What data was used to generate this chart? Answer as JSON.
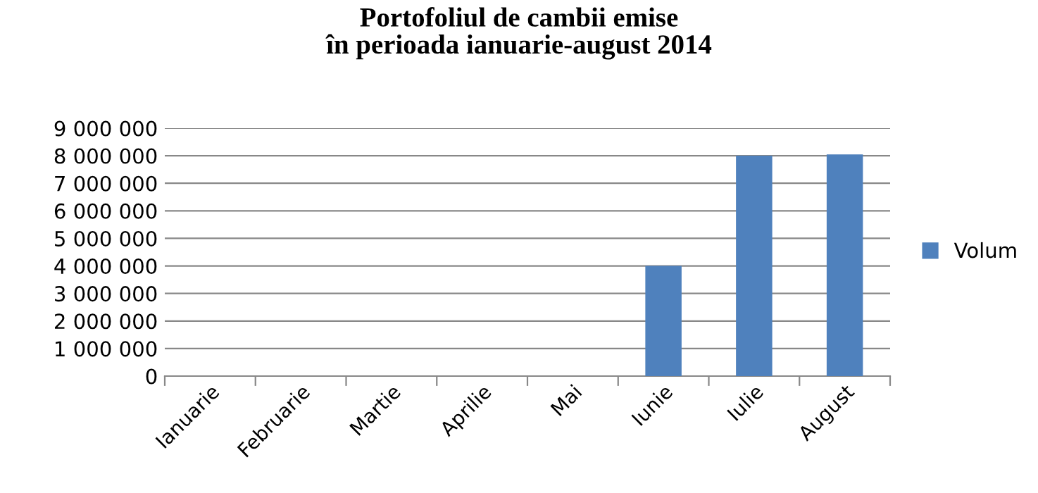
{
  "chart_data": {
    "type": "bar",
    "title": "Portofoliul de cambii emise\nîn perioada ianuarie-august 2014",
    "categories": [
      "Ianuarie",
      "Februarie",
      "Martie",
      "Aprilie",
      "Mai",
      "Iunie",
      "Iulie",
      "August"
    ],
    "series": [
      {
        "name": "Volum",
        "color": "#4f81bd",
        "values": [
          0,
          0,
          0,
          0,
          0,
          4000000,
          8000000,
          8050000
        ]
      }
    ],
    "ylim": [
      0,
      9000000
    ],
    "yticks": [
      {
        "value": 0,
        "label": "0"
      },
      {
        "value": 1000000,
        "label": "1 000 000"
      },
      {
        "value": 2000000,
        "label": "2 000 000"
      },
      {
        "value": 3000000,
        "label": "3 000 000"
      },
      {
        "value": 4000000,
        "label": "4 000 000"
      },
      {
        "value": 5000000,
        "label": "5 000 000"
      },
      {
        "value": 6000000,
        "label": "6 000 000"
      },
      {
        "value": 7000000,
        "label": "7 000 000"
      },
      {
        "value": 8000000,
        "label": "8 000 000"
      },
      {
        "value": 9000000,
        "label": "9 000 000"
      }
    ],
    "grid": "y",
    "legend": "right"
  }
}
